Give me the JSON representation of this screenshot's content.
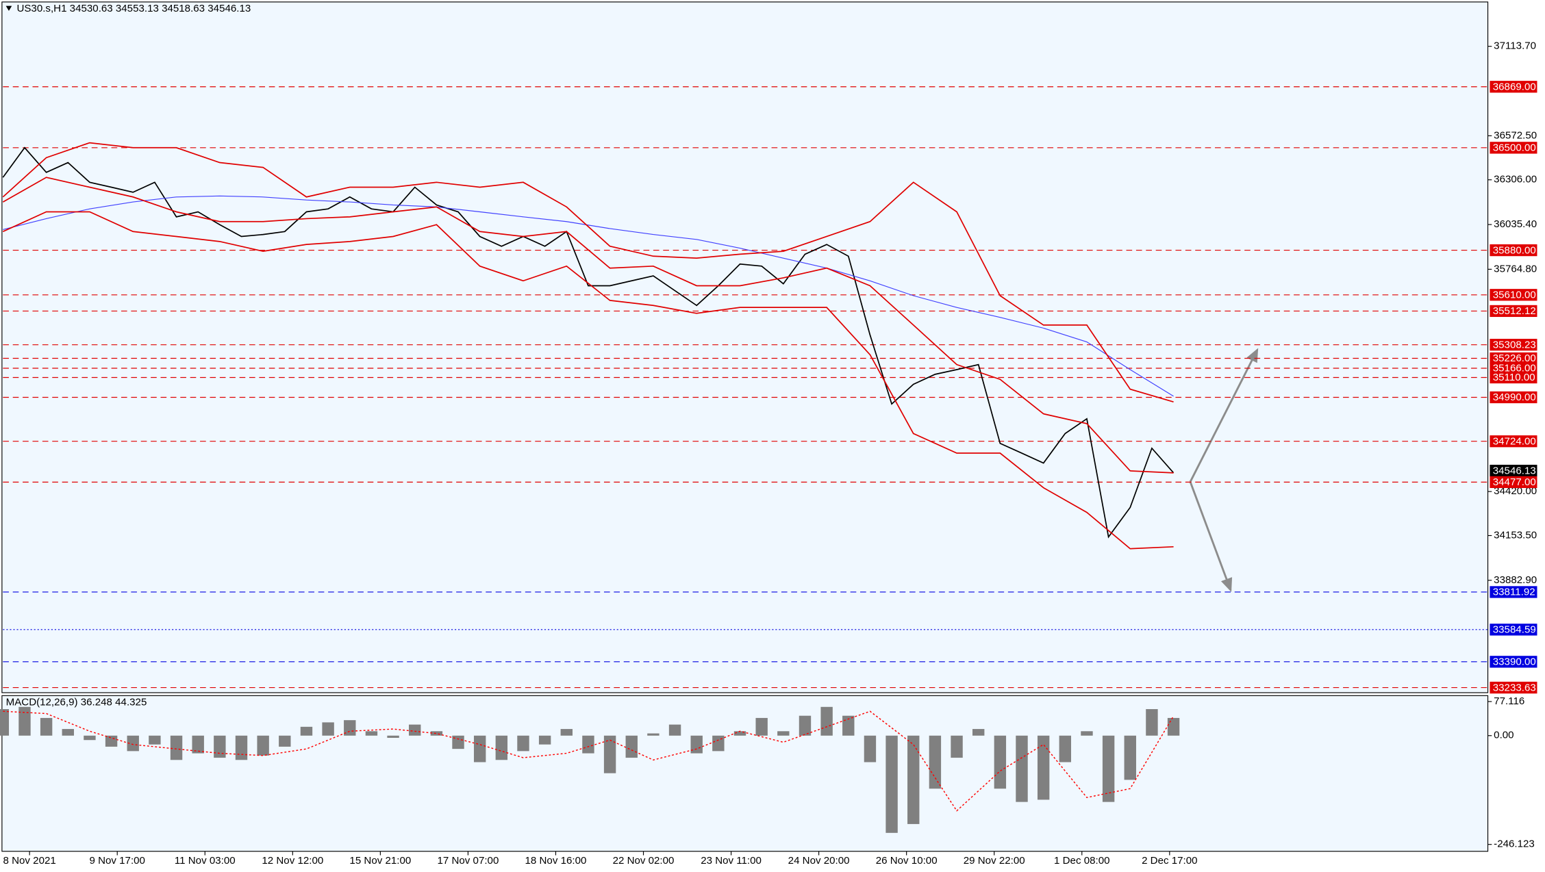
{
  "chart_data": [
    {
      "type": "line",
      "title": "US30.s,H1  34530.63 34553.13 34518.63 34546.13",
      "ylim": [
        33203,
        37382
      ],
      "yticks": [
        {
          "value": 37113.7,
          "label": "37113.70"
        },
        {
          "value": 36572.5,
          "label": "36572.50"
        },
        {
          "value": 36306,
          "label": "36306.00"
        },
        {
          "value": 36035.4,
          "label": "36035.40"
        },
        {
          "value": 35764.8,
          "label": "35764.80"
        },
        {
          "value": 34420,
          "label": "34420.00"
        },
        {
          "value": 34153.5,
          "label": "34153.50"
        },
        {
          "value": 33882.9,
          "label": "33882.90"
        }
      ],
      "xticks": [
        "8 Nov 2021",
        "9 Nov 17:00",
        "11 Nov 03:00",
        "12 Nov 12:00",
        "15 Nov 21:00",
        "17 Nov 07:00",
        "18 Nov 16:00",
        "22 Nov 02:00",
        "23 Nov 11:00",
        "24 Nov 20:00",
        "26 Nov 10:00",
        "29 Nov 22:00",
        "1 Dec 08:00",
        "2 Dec 17:00"
      ],
      "series": [
        {
          "color": "#000000",
          "width": 1.2,
          "values": [
            36321,
            36500,
            36351,
            36410,
            36291,
            36261,
            36231,
            36291,
            36082,
            36112,
            36035,
            35963,
            35975,
            35993,
            36112,
            36130,
            36202,
            36130,
            36112,
            36261,
            36154,
            36112,
            35963,
            35904,
            35963,
            35904,
            35993,
            35665,
            35665,
            35695,
            35725,
            35635,
            35546,
            35665,
            35796,
            35784,
            35677,
            35856,
            35915,
            35844,
            35367,
            34950,
            35069,
            35129,
            35158,
            35188,
            34711,
            34652,
            34592,
            34771,
            34860,
            34145,
            34324,
            34682,
            34533
          ]
        },
        {
          "color": "#4040ff",
          "width": 0.8,
          "values": [
            36005,
            36071,
            36130,
            36172,
            36202,
            36208,
            36202,
            36184,
            36172,
            36154,
            36142,
            36112,
            36082,
            36053,
            36011,
            35975,
            35945,
            35892,
            35832,
            35772,
            35695,
            35605,
            35534,
            35474,
            35409,
            35325,
            35158,
            34997
          ]
        },
        {
          "color": "#e00000",
          "width": 1.2,
          "values": [
            36202,
            36440,
            36530,
            36500,
            36500,
            36410,
            36381,
            36202,
            36261,
            36261,
            36291,
            36261,
            36291,
            36142,
            35904,
            35844,
            35832,
            35856,
            35874,
            35963,
            36053,
            36291,
            36112,
            35605,
            35427,
            35427,
            35039,
            34962
          ]
        },
        {
          "color": "#e00000",
          "width": 1.2,
          "values": [
            36172,
            36321,
            36261,
            36202,
            36112,
            36053,
            36053,
            36071,
            36082,
            36112,
            36142,
            35993,
            35963,
            35993,
            35772,
            35784,
            35665,
            35665,
            35713,
            35772,
            35665,
            35427,
            35188,
            35099,
            34890,
            34831,
            34545,
            34533
          ]
        },
        {
          "color": "#e00000",
          "width": 1.2,
          "values": [
            35993,
            36112,
            36112,
            35993,
            35963,
            35933,
            35874,
            35915,
            35933,
            35963,
            36035,
            35784,
            35695,
            35784,
            35576,
            35546,
            35498,
            35534,
            35534,
            35534,
            35248,
            34771,
            34652,
            34652,
            34443,
            34294,
            34074,
            34086
          ]
        }
      ],
      "levels": [
        {
          "value": 36869,
          "label": "36869.00",
          "color": "#e00000",
          "style": "dashed"
        },
        {
          "value": 36500,
          "label": "36500.00",
          "color": "#e00000",
          "style": "dashed"
        },
        {
          "value": 35880,
          "label": "35880.00",
          "color": "#e00000",
          "style": "dashed"
        },
        {
          "value": 35610,
          "label": "35610.00",
          "color": "#e00000",
          "style": "dashed"
        },
        {
          "value": 35512.12,
          "label": "35512.12",
          "color": "#e00000",
          "style": "dashed"
        },
        {
          "value": 35308.23,
          "label": "35308.23",
          "color": "#e00000",
          "style": "dashed"
        },
        {
          "value": 35226,
          "label": "35226.00",
          "color": "#e00000",
          "style": "dashed"
        },
        {
          "value": 35166,
          "label": "35166.00",
          "color": "#e00000",
          "style": "dashed"
        },
        {
          "value": 35110,
          "label": "35110.00",
          "color": "#e00000",
          "style": "dashed"
        },
        {
          "value": 34990,
          "label": "34990.00",
          "color": "#e00000",
          "style": "dashed"
        },
        {
          "value": 34724,
          "label": "34724.00",
          "color": "#e00000",
          "style": "dashed"
        },
        {
          "value": 34546.13,
          "label": "34546.13",
          "color": "#000000",
          "style": "none"
        },
        {
          "value": 34477,
          "label": "34477.00",
          "color": "#e00000",
          "style": "dashed"
        },
        {
          "value": 33811.92,
          "label": "33811.92",
          "color": "#0000e0",
          "style": "dashed"
        },
        {
          "value": 33584.59,
          "label": "33584.59",
          "color": "#0000e0",
          "style": "dotted"
        },
        {
          "value": 33390,
          "label": "33390.00",
          "color": "#0000e0",
          "style": "dashed"
        },
        {
          "value": 33233.63,
          "label": "33233.63",
          "color": "#e00000",
          "style": "dashed"
        }
      ]
    },
    {
      "type": "bar",
      "title": "MACD(12,26,9) 36.248 44.325",
      "ylim": [
        -261.7,
        90.5
      ],
      "yticks": [
        77.116,
        {
          "value": 0,
          "label": "0.00"
        },
        -246.123
      ],
      "series": [
        {
          "color": "#808080",
          "style": "bars",
          "values": [
            60,
            65,
            40,
            15,
            -10,
            -25,
            -35,
            -20,
            -55,
            -40,
            -50,
            -55,
            -45,
            -25,
            20,
            30,
            35,
            10,
            -5,
            25,
            10,
            -30,
            -60,
            -55,
            -35,
            -20,
            15,
            -40,
            -85,
            -50,
            5,
            25,
            -40,
            -35,
            10,
            40,
            10,
            45,
            65,
            45,
            -60,
            -220,
            -200,
            -120,
            -50,
            15,
            -120,
            -150,
            -145,
            -60,
            10,
            -150,
            -100,
            60,
            40
          ]
        },
        {
          "color": "#ff0000",
          "style": "dotted",
          "values": [
            55,
            50,
            10,
            -20,
            -30,
            -40,
            -45,
            -30,
            10,
            15,
            5,
            -20,
            -50,
            -40,
            -10,
            -55,
            -30,
            10,
            -15,
            20,
            55,
            -20,
            -170,
            -80,
            -20,
            -140,
            -120,
            44.325
          ]
        }
      ]
    }
  ]
}
